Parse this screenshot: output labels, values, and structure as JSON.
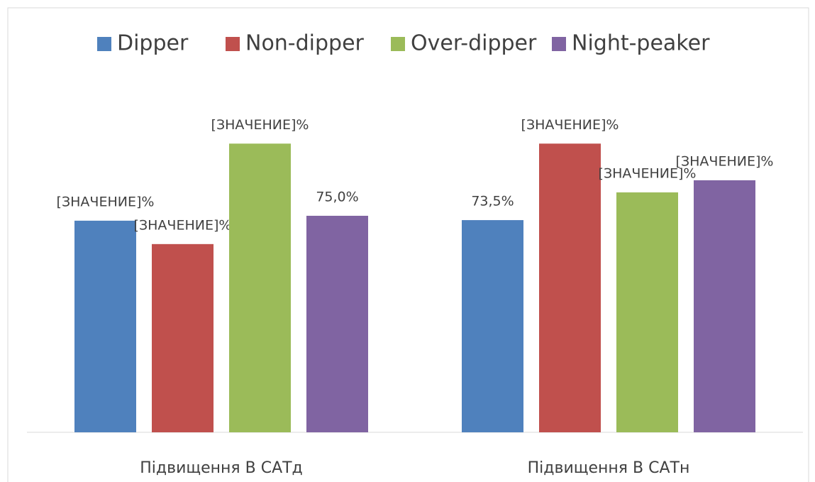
{
  "chart_data": {
    "type": "bar",
    "categories": [
      "Підвищення В САТд",
      "Підвищення В САТн"
    ],
    "series": [
      {
        "name": "Dipper",
        "color": "#4f81bd",
        "values": [
          73.3,
          73.5
        ],
        "value_labels": [
          "[ЗНАЧЕНИЕ]%",
          "73,5%"
        ]
      },
      {
        "name": "Non-dipper",
        "color": "#c0504d",
        "values": [
          65.2,
          100
        ],
        "value_labels": [
          "[ЗНАЧЕНИЕ]%",
          "[ЗНАЧЕНИЕ]%"
        ]
      },
      {
        "name": "Over-dipper",
        "color": "#9bbb59",
        "values": [
          100,
          83.1
        ],
        "value_labels": [
          "[ЗНАЧЕНИЕ]%",
          "[ЗНАЧЕНИЕ]%"
        ]
      },
      {
        "name": "Night-peaker",
        "color": "#8064a2",
        "values": [
          75,
          87.3
        ],
        "value_labels": [
          "75,0%",
          "[ЗНАЧЕНИЕ]%"
        ]
      }
    ],
    "legend": "top"
  }
}
